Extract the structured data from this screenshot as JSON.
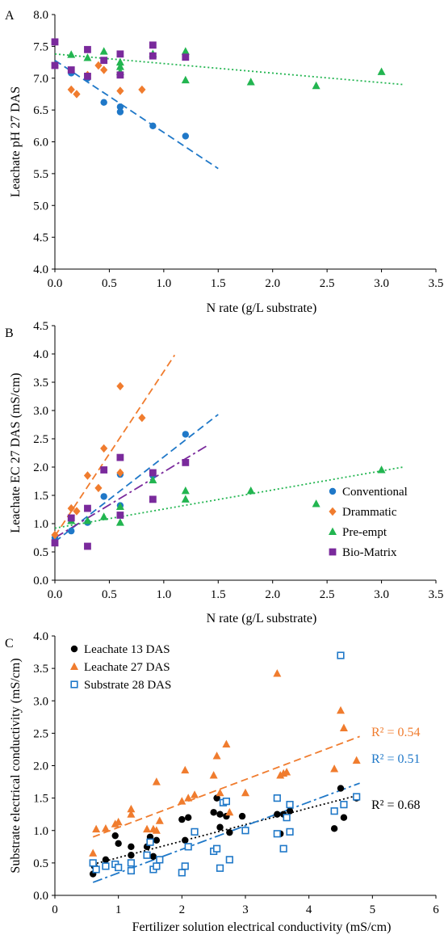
{
  "colors": {
    "conventional": "#1f78c8",
    "drammatic": "#f07c2e",
    "preempt": "#22b550",
    "biomatrix": "#7a2a9c",
    "leachate13": "#000000",
    "leachate27": "#f07c2e",
    "substrate28": "#1f78c8",
    "axis": "#000000"
  },
  "chart_data": [
    {
      "type": "scatter",
      "panel_label": "A",
      "xlabel": "N rate (g/L substrate)",
      "ylabel": "Leachate pH 27 DAS",
      "xlim": [
        0,
        3.5
      ],
      "ylim": [
        4.0,
        8.0
      ],
      "xticks": [
        "0.0",
        "0.5",
        "1.0",
        "1.5",
        "2.0",
        "2.5",
        "3.0",
        "3.5"
      ],
      "yticks": [
        "4.0",
        "4.5",
        "5.0",
        "5.5",
        "6.0",
        "6.5",
        "7.0",
        "7.5",
        "8.0"
      ],
      "grid": false,
      "series": [
        {
          "name": "Conventional",
          "marker": "circle",
          "color": "#1f78c8",
          "points": [
            [
              0,
              7.2
            ],
            [
              0.15,
              7.08
            ],
            [
              0.3,
              7.0
            ],
            [
              0.45,
              6.62
            ],
            [
              0.6,
              6.55
            ],
            [
              0.6,
              6.47
            ],
            [
              0.9,
              6.25
            ],
            [
              1.2,
              6.09
            ]
          ],
          "trend": {
            "x": [
              0,
              1.5
            ],
            "y": [
              7.28,
              5.58
            ],
            "style": "dashed"
          }
        },
        {
          "name": "Drammatic",
          "marker": "diamond",
          "color": "#f07c2e",
          "points": [
            [
              0.15,
              6.82
            ],
            [
              0.2,
              6.75
            ],
            [
              0.3,
              7.05
            ],
            [
              0.4,
              7.2
            ],
            [
              0.45,
              7.13
            ],
            [
              0.6,
              6.8
            ],
            [
              0.8,
              6.82
            ]
          ],
          "trend": null
        },
        {
          "name": "Pre-empt",
          "marker": "triangle",
          "color": "#22b550",
          "points": [
            [
              0.15,
              7.37
            ],
            [
              0.3,
              7.32
            ],
            [
              0.45,
              7.42
            ],
            [
              0.6,
              7.25
            ],
            [
              0.6,
              7.18
            ],
            [
              0.6,
              7.1
            ],
            [
              0.9,
              7.38
            ],
            [
              1.2,
              7.42
            ],
            [
              1.2,
              6.97
            ],
            [
              1.8,
              6.94
            ],
            [
              2.4,
              6.88
            ],
            [
              3.0,
              7.1
            ]
          ],
          "trend": {
            "x": [
              0,
              3.2
            ],
            "y": [
              7.38,
              6.9
            ],
            "style": "dotted"
          }
        },
        {
          "name": "Bio-Matrix",
          "marker": "square",
          "color": "#7a2a9c",
          "points": [
            [
              0,
              7.57
            ],
            [
              0,
              7.2
            ],
            [
              0.15,
              7.13
            ],
            [
              0.3,
              7.45
            ],
            [
              0.3,
              7.03
            ],
            [
              0.45,
              7.28
            ],
            [
              0.6,
              7.38
            ],
            [
              0.6,
              7.05
            ],
            [
              0.9,
              7.52
            ],
            [
              0.9,
              7.35
            ],
            [
              1.2,
              7.33
            ]
          ],
          "trend": null
        }
      ]
    },
    {
      "type": "scatter",
      "panel_label": "B",
      "xlabel": "N rate (g/L substrate)",
      "ylabel": "Leachate EC 27 DAS (mS/cm)",
      "xlim": [
        0,
        3.5
      ],
      "ylim": [
        0,
        4.5
      ],
      "xticks": [
        "0.0",
        "0.5",
        "1.0",
        "1.5",
        "2.0",
        "2.5",
        "3.0",
        "3.5"
      ],
      "yticks": [
        "0.0",
        "0.5",
        "1.0",
        "1.5",
        "2.0",
        "2.5",
        "3.0",
        "3.5",
        "4.0",
        "4.5"
      ],
      "grid": false,
      "legend_position": "right",
      "series": [
        {
          "name": "Conventional",
          "marker": "circle",
          "color": "#1f78c8",
          "points": [
            [
              0,
              0.75
            ],
            [
              0.15,
              0.87
            ],
            [
              0.3,
              1.02
            ],
            [
              0.45,
              1.48
            ],
            [
              0.6,
              1.87
            ],
            [
              0.6,
              1.32
            ],
            [
              0.9,
              1.85
            ],
            [
              1.2,
              2.58
            ]
          ],
          "trend": {
            "x": [
              0,
              1.5
            ],
            "y": [
              0.68,
              2.93
            ],
            "style": "dashed"
          }
        },
        {
          "name": "Drammatic",
          "marker": "diamond",
          "color": "#f07c2e",
          "points": [
            [
              0,
              0.8
            ],
            [
              0.15,
              1.27
            ],
            [
              0.2,
              1.22
            ],
            [
              0.3,
              1.85
            ],
            [
              0.4,
              1.63
            ],
            [
              0.45,
              2.33
            ],
            [
              0.6,
              3.43
            ],
            [
              0.6,
              1.9
            ],
            [
              0.8,
              2.87
            ]
          ],
          "trend": {
            "x": [
              0,
              1.1
            ],
            "y": [
              0.78,
              3.98
            ],
            "style": "dashed"
          }
        },
        {
          "name": "Pre-empt",
          "marker": "triangle",
          "color": "#22b550",
          "points": [
            [
              0.15,
              1.05
            ],
            [
              0.3,
              1.05
            ],
            [
              0.45,
              1.12
            ],
            [
              0.6,
              1.02
            ],
            [
              0.6,
              1.3
            ],
            [
              0.9,
              1.77
            ],
            [
              1.2,
              1.58
            ],
            [
              1.2,
              1.43
            ],
            [
              1.8,
              1.58
            ],
            [
              2.4,
              1.35
            ],
            [
              3.0,
              1.95
            ]
          ],
          "trend": {
            "x": [
              0,
              3.2
            ],
            "y": [
              0.92,
              2.0
            ],
            "style": "dotted"
          }
        },
        {
          "name": "Bio-Matrix",
          "marker": "square",
          "color": "#7a2a9c",
          "points": [
            [
              0,
              0.66
            ],
            [
              0.15,
              1.1
            ],
            [
              0.3,
              1.27
            ],
            [
              0.3,
              0.6
            ],
            [
              0.45,
              1.95
            ],
            [
              0.6,
              2.17
            ],
            [
              0.6,
              1.15
            ],
            [
              0.9,
              1.9
            ],
            [
              0.9,
              1.43
            ],
            [
              1.2,
              2.08
            ]
          ],
          "trend": {
            "x": [
              0,
              1.4
            ],
            "y": [
              0.75,
              2.38
            ],
            "style": "dashdot"
          }
        }
      ]
    },
    {
      "type": "scatter",
      "panel_label": "C",
      "xlabel": "Fertilizer solution electrical conductivity (mS/cm)",
      "ylabel": "Substrate electrical conductivity (mS/cm)",
      "xlim": [
        0,
        6
      ],
      "ylim": [
        0,
        4.0
      ],
      "xticks": [
        "0",
        "1",
        "2",
        "3",
        "4",
        "5",
        "6"
      ],
      "yticks": [
        "0.0",
        "0.5",
        "1.0",
        "1.5",
        "2.0",
        "2.5",
        "3.0",
        "3.5",
        "4.0"
      ],
      "grid": false,
      "legend_position": "top-left",
      "series": [
        {
          "name": "Leachate 13 DAS",
          "marker": "circle",
          "color": "#000000",
          "points": [
            [
              0.6,
              0.33
            ],
            [
              0.62,
              0.45
            ],
            [
              0.8,
              0.55
            ],
            [
              0.95,
              0.92
            ],
            [
              1.0,
              0.8
            ],
            [
              1.2,
              0.75
            ],
            [
              1.2,
              0.62
            ],
            [
              1.45,
              0.75
            ],
            [
              1.5,
              0.9
            ],
            [
              1.55,
              0.6
            ],
            [
              1.6,
              0.85
            ],
            [
              2.0,
              1.17
            ],
            [
              2.1,
              1.2
            ],
            [
              2.05,
              0.85
            ],
            [
              2.5,
              1.28
            ],
            [
              2.55,
              1.5
            ],
            [
              2.6,
              1.25
            ],
            [
              2.6,
              1.05
            ],
            [
              2.7,
              1.22
            ],
            [
              2.75,
              0.97
            ],
            [
              2.95,
              1.22
            ],
            [
              3.5,
              1.25
            ],
            [
              3.55,
              0.95
            ],
            [
              3.6,
              1.25
            ],
            [
              3.7,
              1.3
            ],
            [
              4.4,
              1.03
            ],
            [
              4.5,
              1.65
            ],
            [
              4.55,
              1.2
            ],
            [
              4.75,
              1.5
            ]
          ],
          "trend": {
            "x": [
              0.6,
              4.8
            ],
            "y": [
              0.48,
              1.55
            ],
            "style": "dotted"
          },
          "r2": "R² = 0.68"
        },
        {
          "name": "Leachate 27 DAS",
          "marker": "triangle",
          "color": "#f07c2e",
          "points": [
            [
              0.6,
              0.65
            ],
            [
              0.65,
              1.02
            ],
            [
              0.8,
              1.03
            ],
            [
              0.95,
              1.1
            ],
            [
              1.0,
              1.13
            ],
            [
              1.2,
              1.33
            ],
            [
              1.2,
              1.25
            ],
            [
              1.45,
              1.02
            ],
            [
              1.55,
              1.02
            ],
            [
              1.6,
              1.75
            ],
            [
              1.6,
              1.0
            ],
            [
              1.65,
              1.15
            ],
            [
              2.0,
              1.45
            ],
            [
              2.05,
              1.93
            ],
            [
              2.1,
              1.5
            ],
            [
              2.2,
              1.55
            ],
            [
              2.5,
              1.85
            ],
            [
              2.55,
              2.15
            ],
            [
              2.6,
              1.58
            ],
            [
              2.7,
              2.33
            ],
            [
              2.75,
              1.28
            ],
            [
              3.0,
              1.58
            ],
            [
              3.5,
              3.42
            ],
            [
              3.55,
              1.85
            ],
            [
              3.6,
              1.88
            ],
            [
              3.65,
              1.9
            ],
            [
              4.4,
              1.95
            ],
            [
              4.5,
              2.85
            ],
            [
              4.55,
              2.58
            ],
            [
              4.75,
              2.08
            ]
          ],
          "trend": {
            "x": [
              0.6,
              4.8
            ],
            "y": [
              0.9,
              2.45
            ],
            "style": "dashed"
          },
          "r2": "R² = 0.54"
        },
        {
          "name": "Substrate 28 DAS",
          "marker": "square-open",
          "color": "#1f78c8",
          "points": [
            [
              0.6,
              0.5
            ],
            [
              0.65,
              0.4
            ],
            [
              0.8,
              0.45
            ],
            [
              0.95,
              0.48
            ],
            [
              1.0,
              0.43
            ],
            [
              1.2,
              0.38
            ],
            [
              1.2,
              0.5
            ],
            [
              1.45,
              0.62
            ],
            [
              1.5,
              0.82
            ],
            [
              1.55,
              0.4
            ],
            [
              1.6,
              0.45
            ],
            [
              1.65,
              0.55
            ],
            [
              2.0,
              0.35
            ],
            [
              2.05,
              0.45
            ],
            [
              2.1,
              0.75
            ],
            [
              2.2,
              0.98
            ],
            [
              2.5,
              0.68
            ],
            [
              2.55,
              0.72
            ],
            [
              2.6,
              0.42
            ],
            [
              2.65,
              1.43
            ],
            [
              2.7,
              1.45
            ],
            [
              2.75,
              0.55
            ],
            [
              3.0,
              1.0
            ],
            [
              3.5,
              1.5
            ],
            [
              3.5,
              0.95
            ],
            [
              3.6,
              0.72
            ],
            [
              3.65,
              1.2
            ],
            [
              3.7,
              1.4
            ],
            [
              3.7,
              0.98
            ],
            [
              4.4,
              1.3
            ],
            [
              4.5,
              3.7
            ],
            [
              4.55,
              1.4
            ],
            [
              4.75,
              1.52
            ]
          ],
          "trend": {
            "x": [
              0.6,
              4.8
            ],
            "y": [
              0.2,
              1.73
            ],
            "style": "dashdot"
          },
          "r2": "R² = 0.51"
        }
      ]
    }
  ]
}
